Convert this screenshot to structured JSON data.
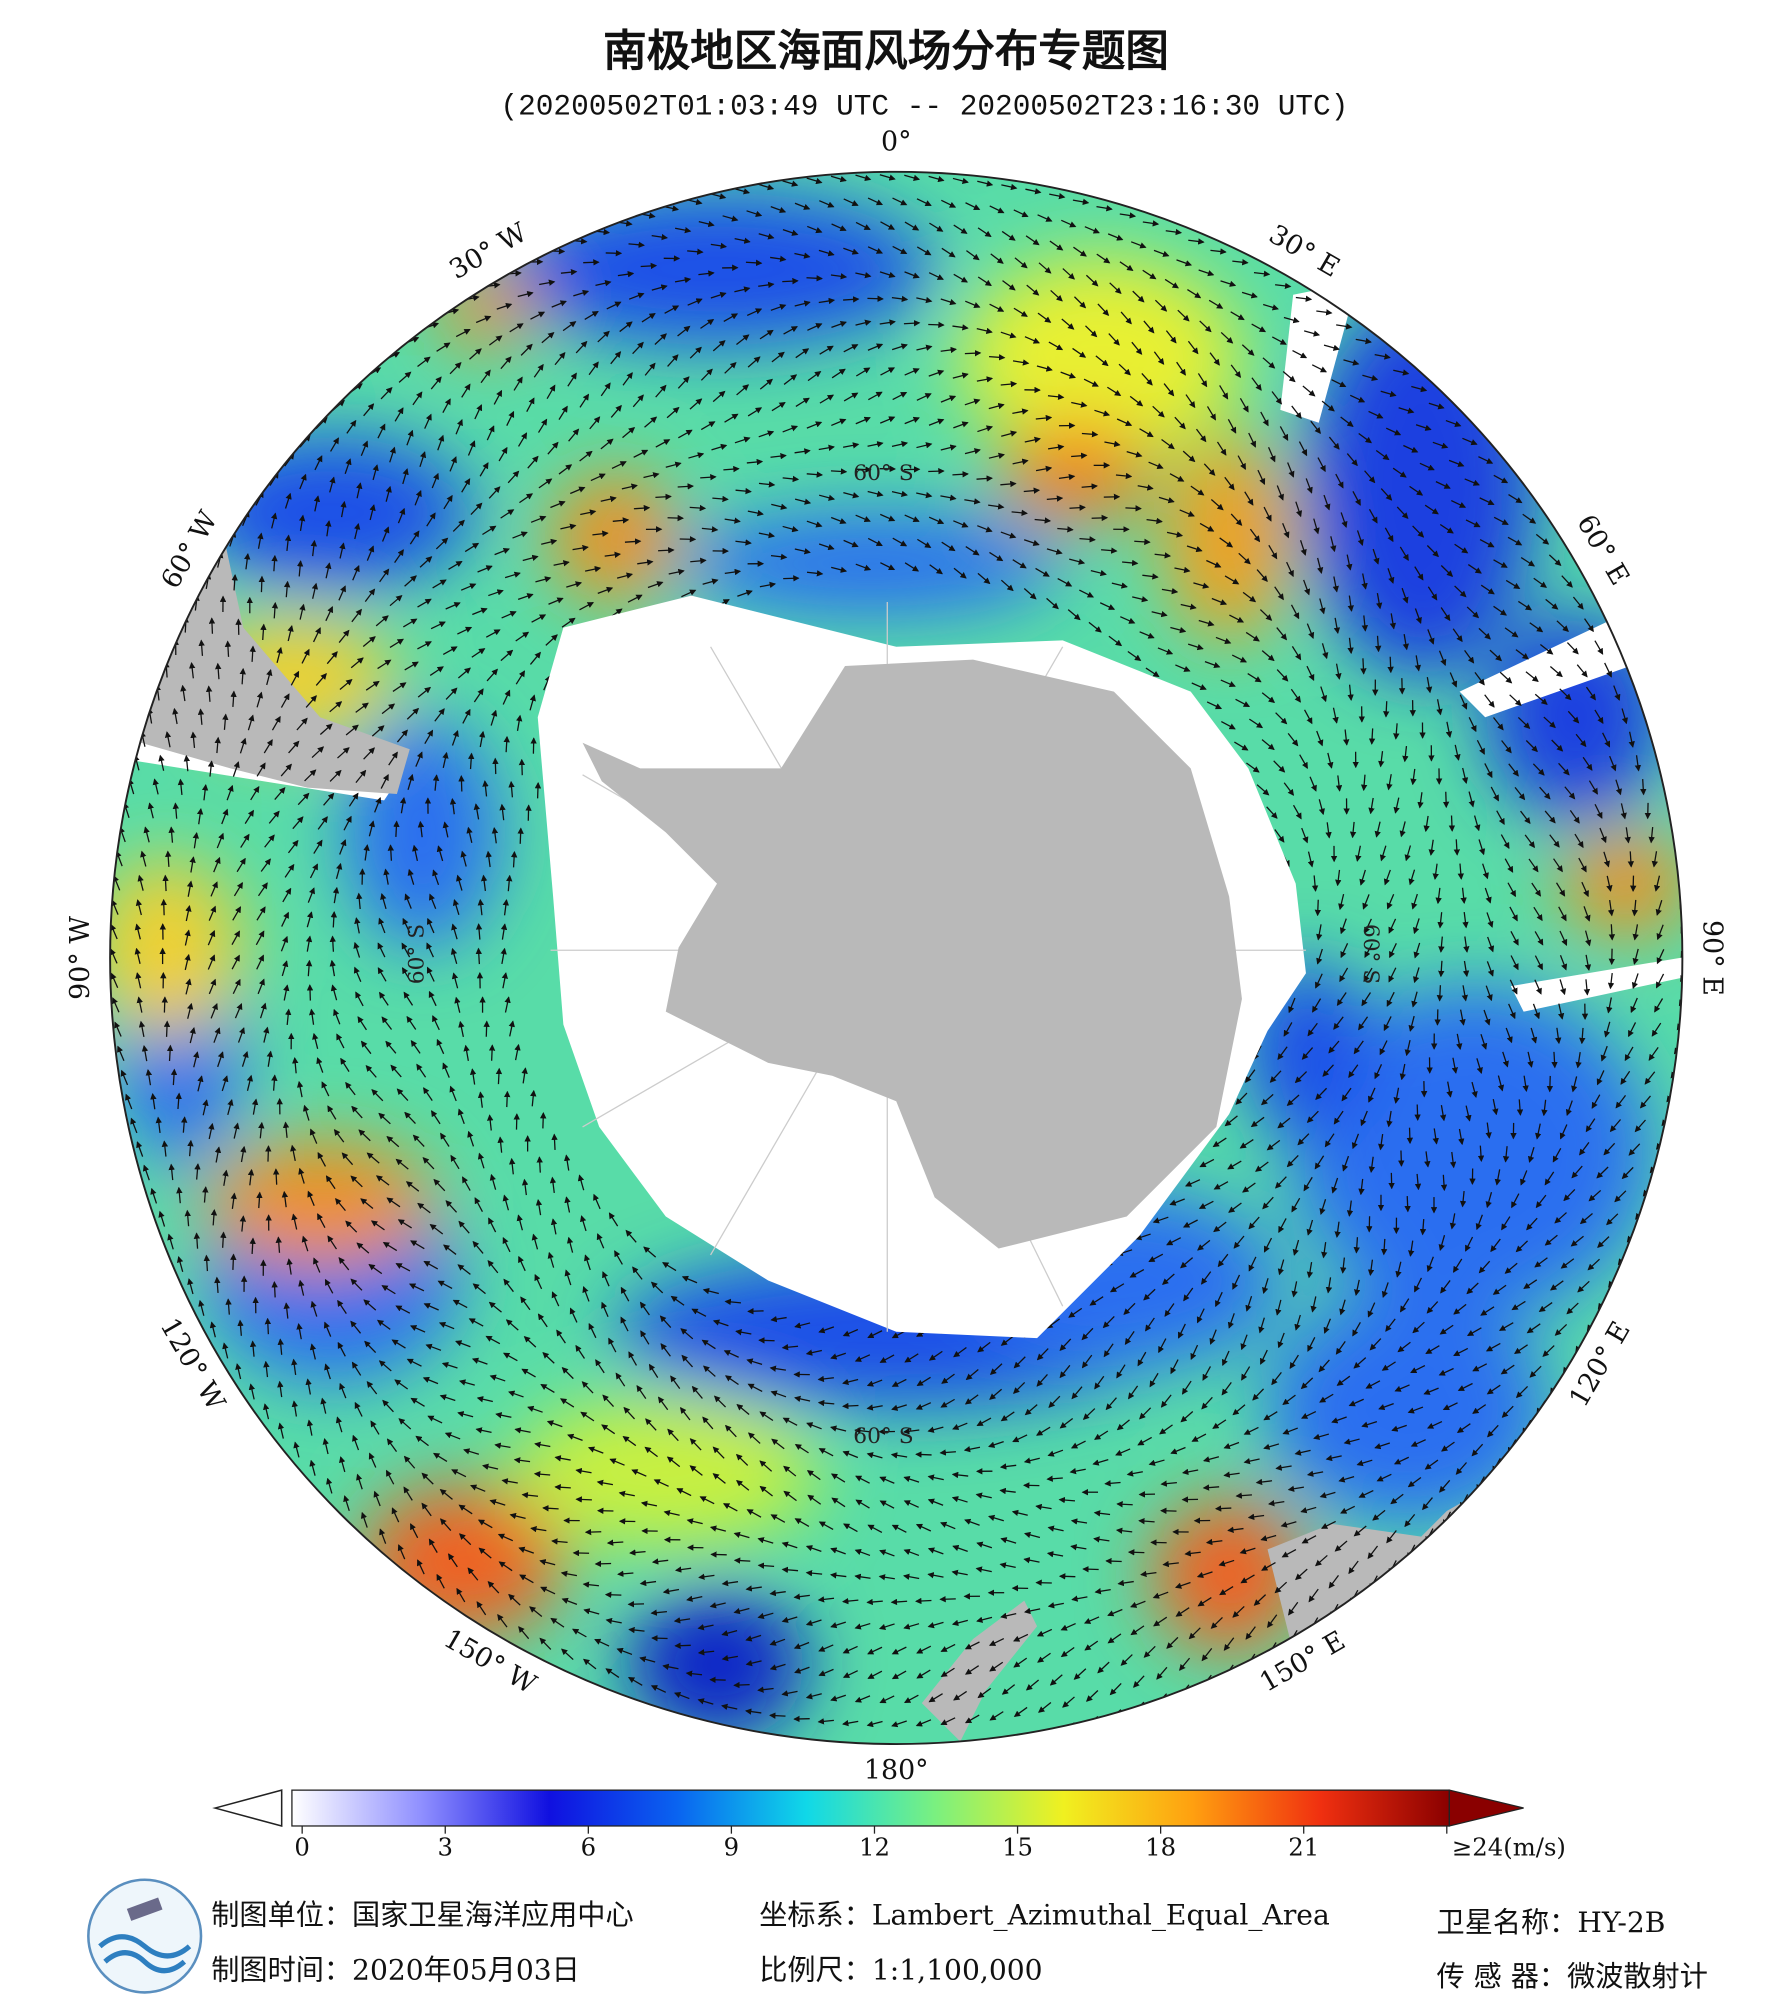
{
  "header": {
    "title": "南极地区海面风场分布专题图",
    "subtitle": "(20200502T01:03:49 UTC -- 20200502T23:16:30 UTC)"
  },
  "map": {
    "longitude_labels": [
      "0°",
      "30° E",
      "60° E",
      "90° E",
      "120° E",
      "150° E",
      "180°",
      "150° W",
      "120° W",
      "90° W",
      "60° W",
      "30° W"
    ],
    "latitude_labels": [
      "60° S",
      "60° S",
      "60° S",
      "60° S"
    ]
  },
  "colorbar": {
    "range": [
      0,
      24
    ],
    "ticks": [
      0,
      3,
      6,
      9,
      12,
      15,
      18,
      21,
      {
        "value": 24,
        "label": "≥24(m/s)"
      }
    ],
    "colors": [
      "#ffffff",
      "#9090ff",
      "#1010e0",
      "#0a64f0",
      "#10d8e8",
      "#7af080",
      "#f0f020",
      "#ffa010",
      "#f03010",
      "#8a0000"
    ],
    "over_color": "#8a0000"
  },
  "footer": {
    "unit": "制图单位：国家卫星海洋应用中心",
    "date": "制图时间：2020年05月03日",
    "crs": "坐标系：Lambert_Azimuthal_Equal_Area",
    "scale": "比例尺：1:1,100,000",
    "satellite": "卫星名称：HY-2B",
    "sensor": "传 感 器：微波散射计"
  }
}
